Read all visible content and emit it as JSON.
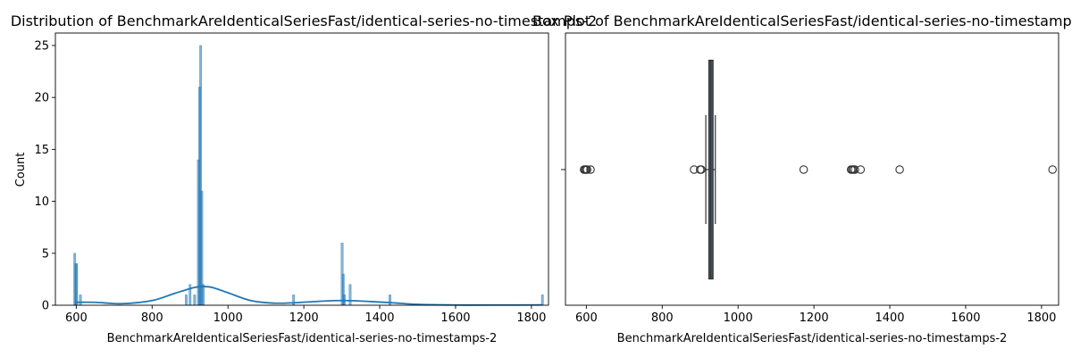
{
  "colors": {
    "bar": "#1f77b4",
    "kde": "#1f77b4",
    "box_fill": "#3d5a73",
    "box_edge": "#333333"
  },
  "chart_data": [
    {
      "type": "bar",
      "title": "Distribution of BenchmarkAreIdenticalSeriesFast/identical-series-no-timestamps-2",
      "xlabel": "BenchmarkAreIdenticalSeriesFast/identical-series-no-timestamps-2",
      "ylabel": "Count",
      "xlim": [
        545,
        1845
      ],
      "ylim": [
        0,
        26.2
      ],
      "xticks": [
        "600",
        "800",
        "1000",
        "1200",
        "1400",
        "1600",
        "1800"
      ],
      "yticks": [
        "0",
        "5",
        "10",
        "15",
        "20",
        "25"
      ],
      "bins": [
        {
          "x": 596,
          "count": 5
        },
        {
          "x": 599,
          "count": 4
        },
        {
          "x": 601,
          "count": 4
        },
        {
          "x": 611,
          "count": 1
        },
        {
          "x": 890,
          "count": 1
        },
        {
          "x": 900,
          "count": 2
        },
        {
          "x": 912,
          "count": 1
        },
        {
          "x": 922,
          "count": 14
        },
        {
          "x": 925,
          "count": 21
        },
        {
          "x": 928,
          "count": 25
        },
        {
          "x": 931,
          "count": 11
        },
        {
          "x": 935,
          "count": 2
        },
        {
          "x": 1173,
          "count": 1
        },
        {
          "x": 1301,
          "count": 6
        },
        {
          "x": 1304,
          "count": 3
        },
        {
          "x": 1307,
          "count": 1
        },
        {
          "x": 1322,
          "count": 2
        },
        {
          "x": 1427,
          "count": 1
        },
        {
          "x": 1829,
          "count": 1
        }
      ],
      "kde": [
        {
          "x": 596,
          "y": 0.28
        },
        {
          "x": 650,
          "y": 0.28
        },
        {
          "x": 720,
          "y": 0.15
        },
        {
          "x": 800,
          "y": 0.45
        },
        {
          "x": 860,
          "y": 1.15
        },
        {
          "x": 910,
          "y": 1.7
        },
        {
          "x": 935,
          "y": 1.8
        },
        {
          "x": 960,
          "y": 1.7
        },
        {
          "x": 1000,
          "y": 1.2
        },
        {
          "x": 1060,
          "y": 0.45
        },
        {
          "x": 1120,
          "y": 0.2
        },
        {
          "x": 1180,
          "y": 0.25
        },
        {
          "x": 1250,
          "y": 0.4
        },
        {
          "x": 1310,
          "y": 0.45
        },
        {
          "x": 1380,
          "y": 0.35
        },
        {
          "x": 1440,
          "y": 0.22
        },
        {
          "x": 1500,
          "y": 0.08
        },
        {
          "x": 1600,
          "y": 0.02
        },
        {
          "x": 1700,
          "y": 0.02
        },
        {
          "x": 1829,
          "y": 0.03
        }
      ]
    },
    {
      "type": "box",
      "title": "Box Plot of BenchmarkAreIdenticalSeriesFast/identical-series-no-timestamps-2",
      "xlabel": "BenchmarkAreIdenticalSeriesFast/identical-series-no-timestamps-2",
      "xlim": [
        545,
        1845
      ],
      "xticks": [
        "600",
        "800",
        "1000",
        "1200",
        "1400",
        "1600",
        "1800"
      ],
      "box": {
        "q1": 923,
        "median": 928,
        "q3": 934,
        "whisker_low": 915,
        "whisker_high": 940
      },
      "outliers": [
        594,
        597,
        599,
        602,
        611,
        884,
        900,
        903,
        1173,
        1298,
        1301,
        1304,
        1308,
        1323,
        1426,
        1829
      ]
    }
  ]
}
